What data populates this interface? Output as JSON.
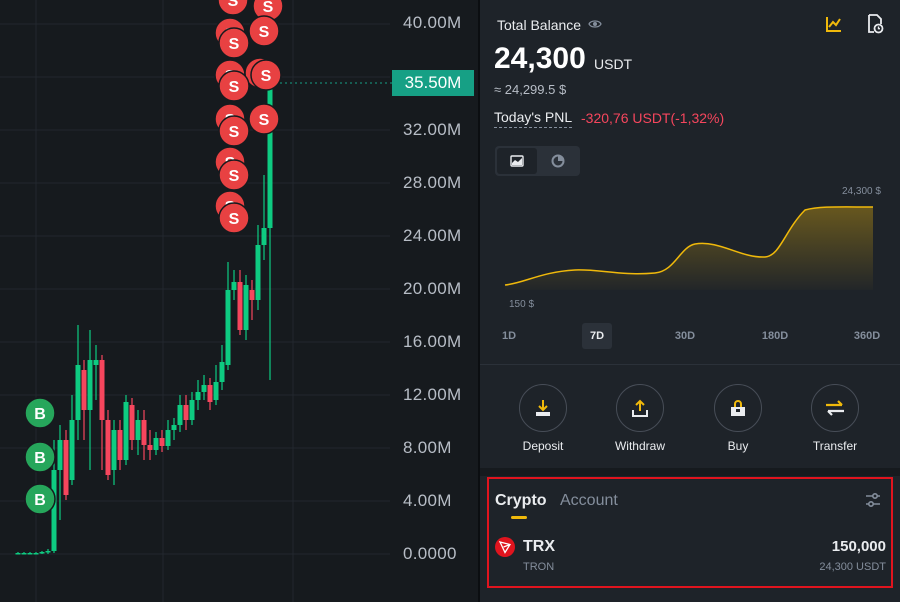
{
  "chart": {
    "y_labels": [
      "40.00M",
      "32.00M",
      "28.00M",
      "24.00M",
      "20.00M",
      "16.00M",
      "12.00M",
      "8.00M",
      "4.00M",
      "0.0000"
    ],
    "current_price": "35.50M",
    "buy_marker": "B",
    "sell_marker": "S",
    "up_color": "#0ecb81",
    "down_color": "#f6465d"
  },
  "wallet": {
    "total_balance_label": "Total Balance",
    "balance_value": "24,300",
    "balance_unit": "USDT",
    "approx_value": "≈ 24,299.5 $",
    "pnl_label": "Today's PNL",
    "pnl_value": "-320,76 USDT(-1,32%)",
    "chart_max_label": "24,300 $",
    "chart_min_label": "150 $",
    "ranges": [
      "1D",
      "7D",
      "30D",
      "180D",
      "360D"
    ],
    "active_range": "7D",
    "actions": [
      {
        "label": "Deposit",
        "icon": "deposit-icon"
      },
      {
        "label": "Withdraw",
        "icon": "withdraw-icon"
      },
      {
        "label": "Buy",
        "icon": "buy-icon"
      },
      {
        "label": "Transfer",
        "icon": "transfer-icon"
      }
    ],
    "tabs": {
      "crypto": "Crypto",
      "account": "Account"
    },
    "asset": {
      "symbol": "TRX",
      "name": "TRON",
      "amount": "150,000",
      "value": "24,300 USDT"
    },
    "accent_color": "#f0b90b"
  }
}
